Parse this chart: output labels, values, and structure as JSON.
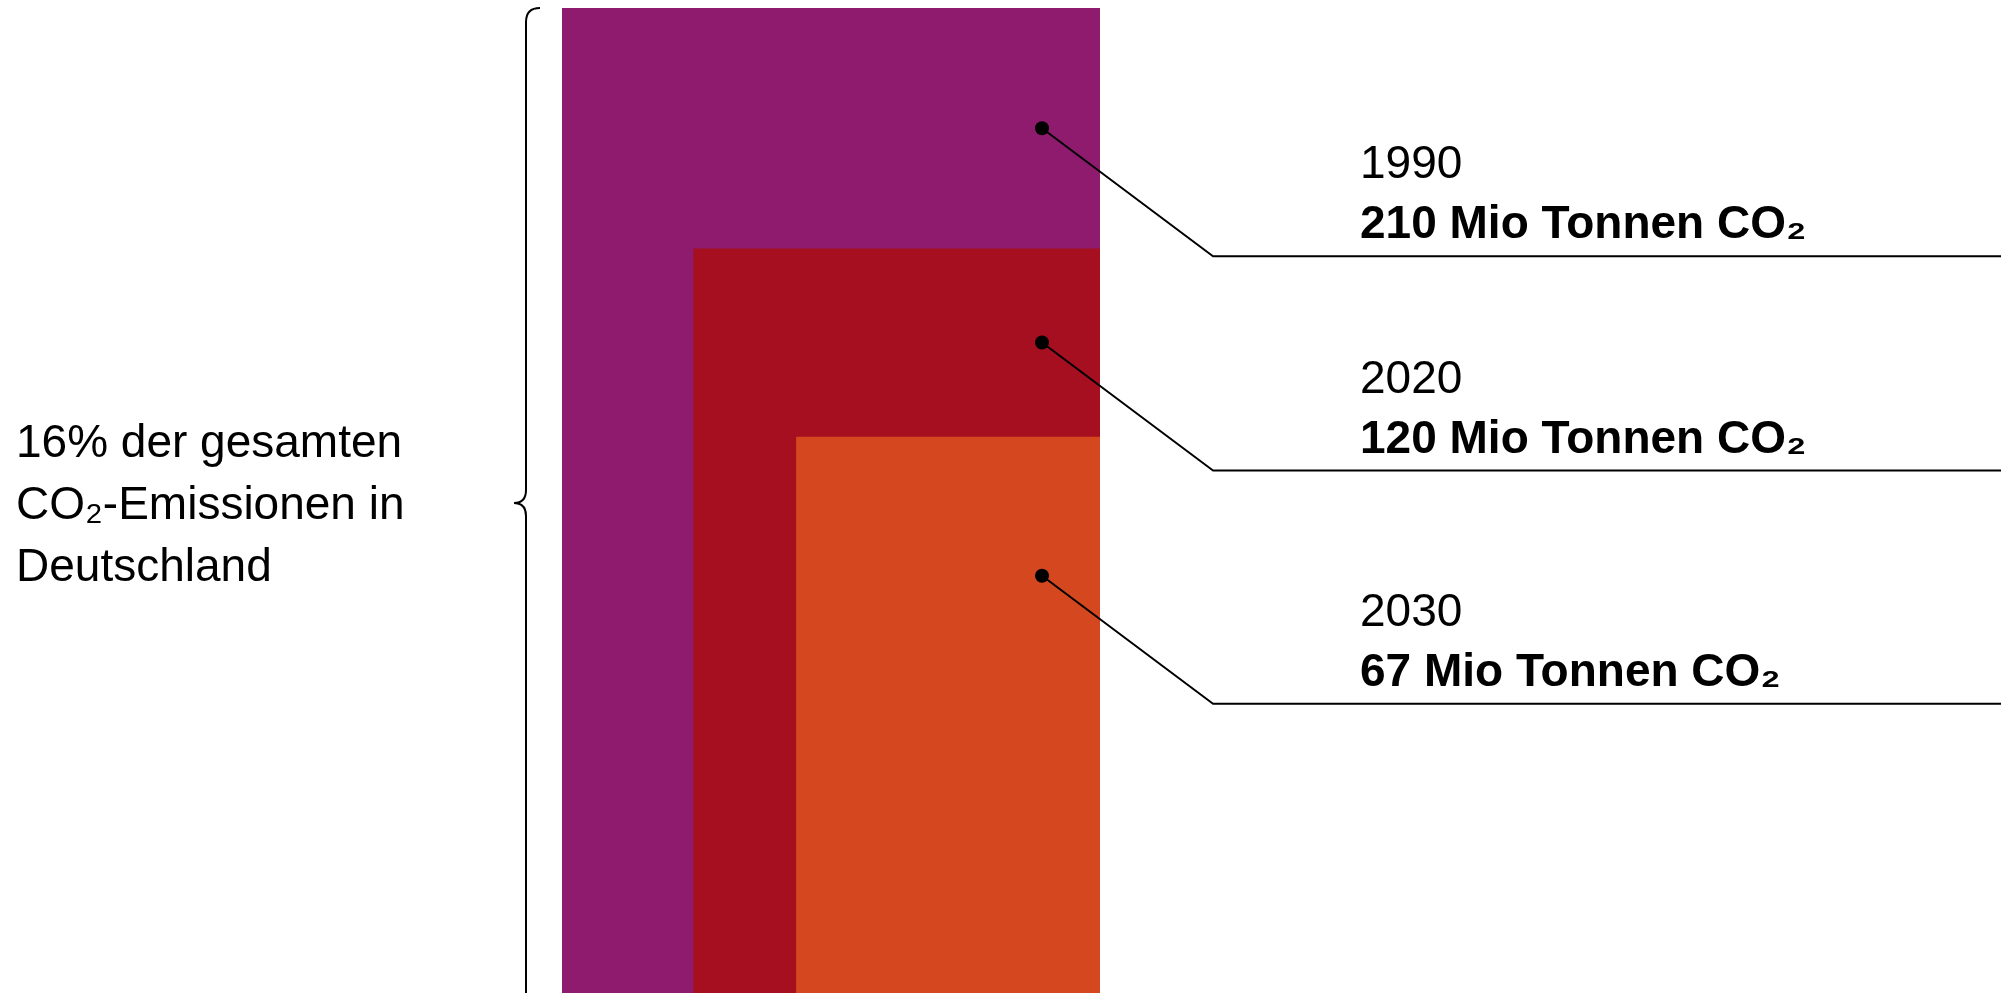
{
  "chart_data": {
    "type": "other",
    "categories": [
      "1990",
      "2020",
      "2030"
    ],
    "values": [
      210,
      120,
      67
    ],
    "colors": [
      "#8e1b6e",
      "#a50f1f",
      "#d5471f"
    ],
    "value_labels": [
      "210 Mio Tonnen CO₂",
      "120 Mio Tonnen CO₂",
      "67 Mio Tonnen CO₂"
    ],
    "annotations": [
      "16% der gesamten CO₂-Emissionen in Deutschland"
    ]
  }
}
